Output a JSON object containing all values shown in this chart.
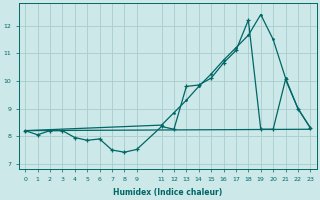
{
  "xlabel": "Humidex (Indice chaleur)",
  "bg_color": "#cde8e8",
  "grid_color": "#aacccc",
  "line_color": "#006666",
  "xlim": [
    -0.5,
    23.5
  ],
  "ylim": [
    6.8,
    12.8
  ],
  "xticks": [
    0,
    1,
    2,
    3,
    4,
    5,
    6,
    7,
    8,
    9,
    11,
    12,
    13,
    14,
    15,
    16,
    17,
    18,
    19,
    20,
    21,
    22,
    23
  ],
  "yticks": [
    7,
    8,
    9,
    10,
    11,
    12
  ],
  "line1_x": [
    0,
    1,
    2,
    3,
    4,
    5,
    6,
    7,
    8,
    9,
    11,
    12,
    13,
    14,
    15,
    16,
    17,
    18,
    19,
    20,
    21,
    22,
    23
  ],
  "line1_y": [
    8.2,
    8.05,
    8.2,
    8.2,
    7.95,
    7.85,
    7.9,
    7.5,
    7.42,
    7.52,
    8.35,
    8.25,
    9.8,
    9.85,
    10.1,
    10.65,
    11.1,
    12.2,
    8.25,
    8.25,
    10.05,
    9.0,
    8.3
  ],
  "line2_x": [
    0,
    23
  ],
  "line2_y": [
    8.2,
    8.25
  ],
  "line3_x": [
    0,
    11,
    12,
    13,
    14,
    15,
    16,
    17,
    18,
    19,
    20,
    21,
    22,
    23
  ],
  "line3_y": [
    8.2,
    8.4,
    8.85,
    9.3,
    9.8,
    10.25,
    10.75,
    11.2,
    11.65,
    12.4,
    11.5,
    10.1,
    9.0,
    8.3
  ]
}
